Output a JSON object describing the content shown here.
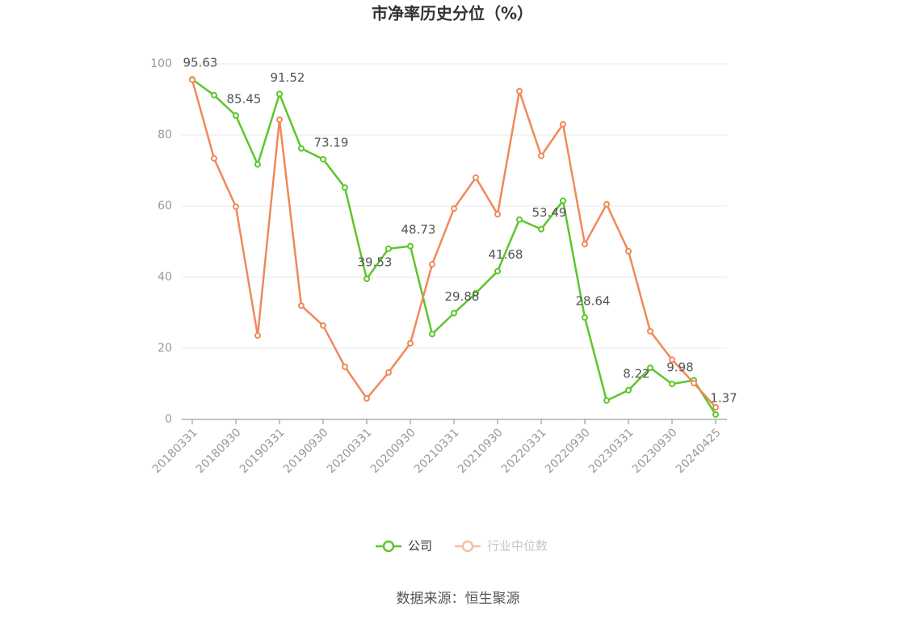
{
  "chart_data": {
    "type": "line",
    "title": "市净率历史分位（%）",
    "categories": [
      "20180331",
      null,
      "20180930",
      null,
      "20190331",
      null,
      "20190930",
      null,
      "20200331",
      null,
      "20200930",
      null,
      "20210331",
      null,
      "20210930",
      null,
      "20220331",
      null,
      "20220930",
      null,
      "20230331",
      null,
      "20230930",
      null,
      "20240425"
    ],
    "series": [
      {
        "name": "公司",
        "color": "#5cc62b",
        "values": [
          95.63,
          91.2,
          85.45,
          71.7,
          91.52,
          76.2,
          73.19,
          65.2,
          39.53,
          48.0,
          48.73,
          24.0,
          29.88,
          35.5,
          41.68,
          56.2,
          53.49,
          61.5,
          28.64,
          5.3,
          8.22,
          14.5,
          9.98,
          11.0,
          1.37
        ]
      },
      {
        "name": "行业中位数",
        "color": "#f0895a",
        "values": [
          95.5,
          73.4,
          59.8,
          23.6,
          84.3,
          32.0,
          26.4,
          14.8,
          5.9,
          13.2,
          21.4,
          43.6,
          59.3,
          68.0,
          57.7,
          92.3,
          74.1,
          83.0,
          49.3,
          60.5,
          47.3,
          24.8,
          16.8,
          10.2,
          3.4
        ]
      }
    ],
    "ylim": [
      0,
      100
    ],
    "yticks": [
      0,
      20,
      40,
      60,
      80,
      100
    ],
    "grid": true,
    "source": "数据来源：恒生聚源"
  }
}
